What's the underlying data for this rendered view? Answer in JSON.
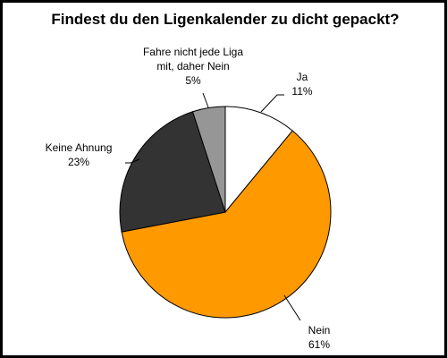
{
  "chart_data": {
    "type": "pie",
    "title": "Findest du den Ligenkalender zu dicht gepackt?",
    "slices": [
      {
        "label": "Ja",
        "value": 11,
        "value_label": "11%",
        "color": "#ffffff"
      },
      {
        "label": "Nein",
        "value": 61,
        "value_label": "61%",
        "color": "#ff9900"
      },
      {
        "label": "Keine Ahnung",
        "value": 23,
        "value_label": "23%",
        "color": "#333333"
      },
      {
        "label_lines": [
          "Fahre nicht jede Liga",
          "mit, daher Nein"
        ],
        "value": 5,
        "value_label": "5%",
        "color": "#969696"
      }
    ],
    "start": "12 o'clock",
    "direction": "clockwise",
    "legend": "none"
  }
}
